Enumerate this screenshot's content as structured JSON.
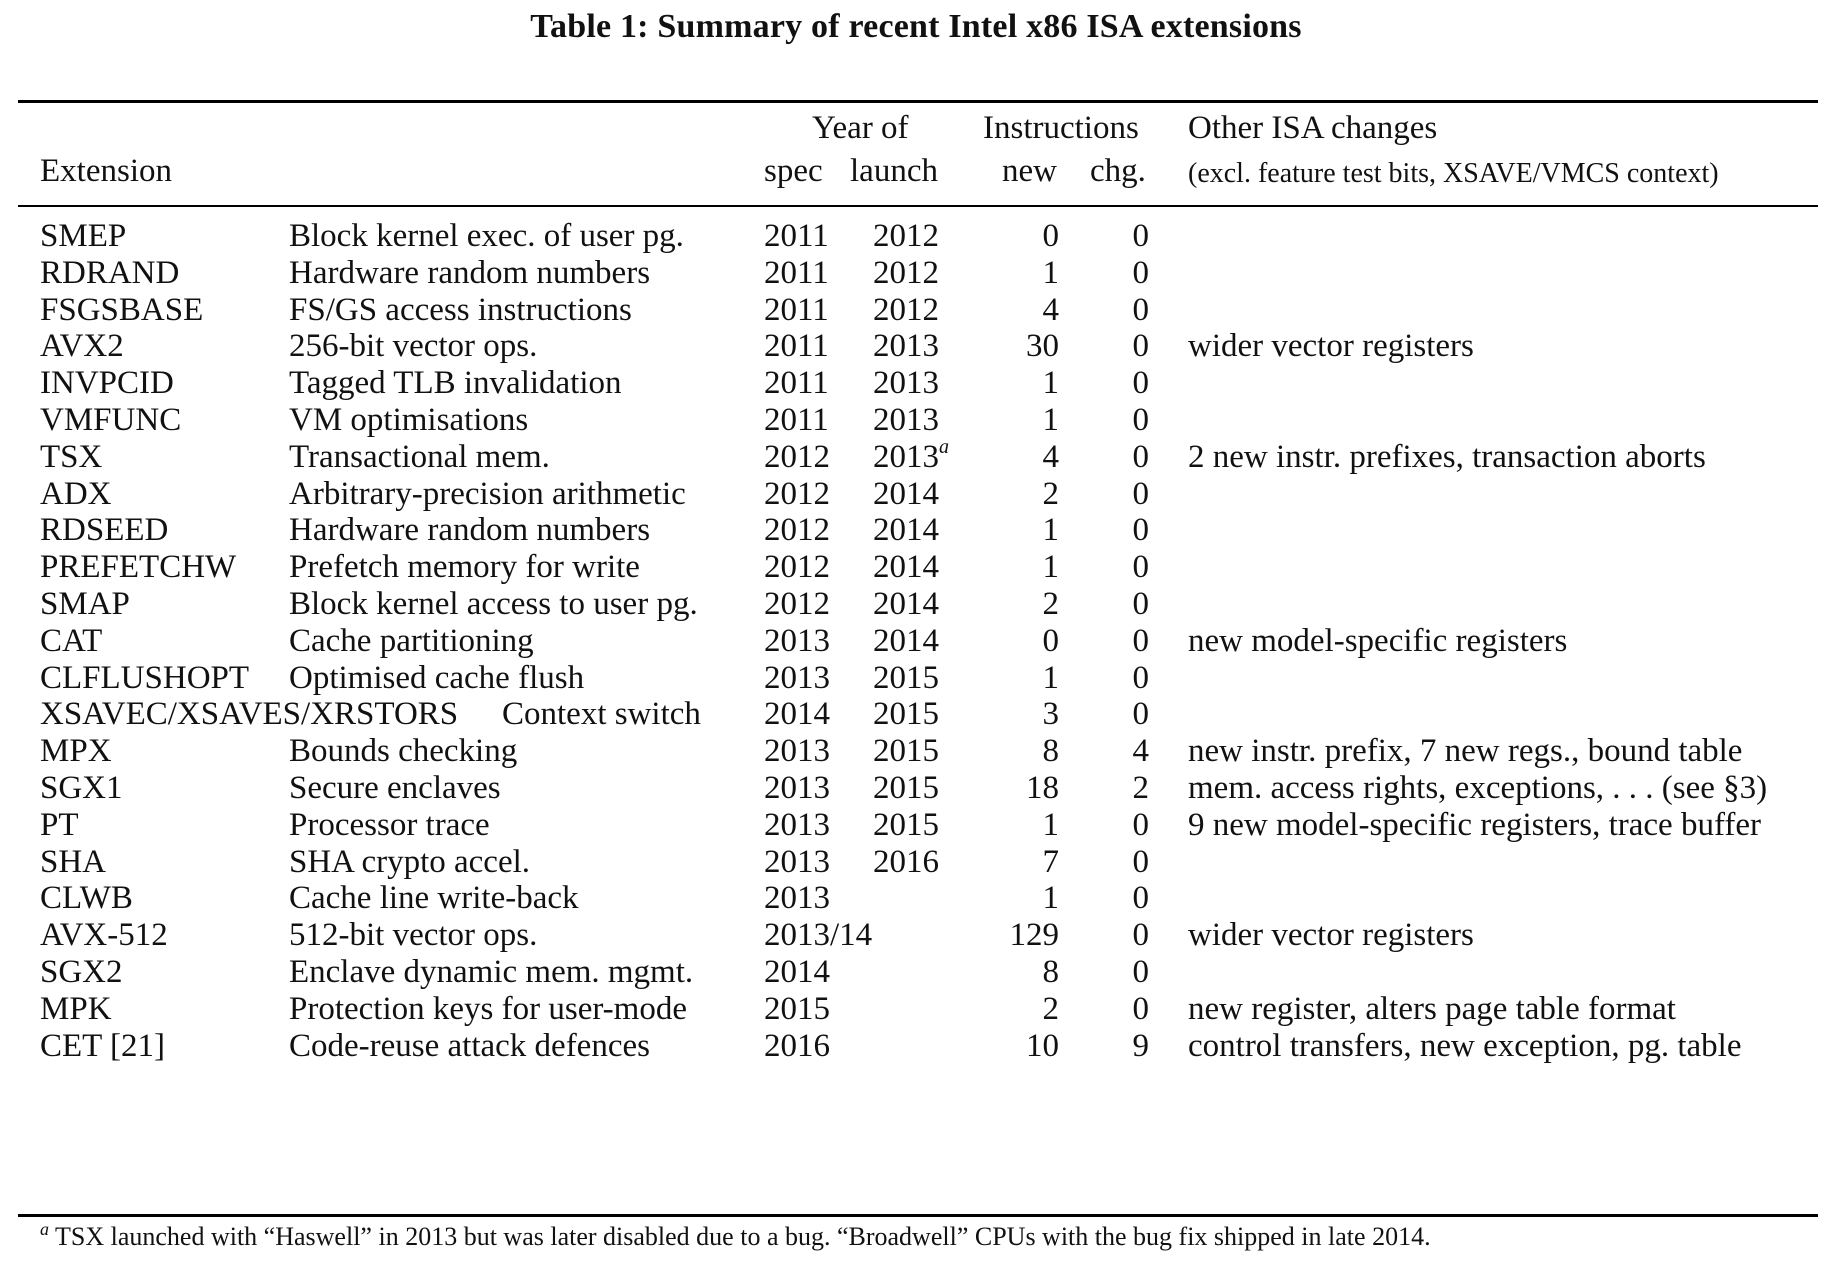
{
  "caption": "Table 1: Summary of recent Intel x86 ISA extensions",
  "headers": {
    "extension": "Extension",
    "year_of": "Year of",
    "spec": "spec",
    "launch": "launch",
    "instructions": "Instructions",
    "new": "new",
    "chg": "chg.",
    "other_isa": "Other ISA changes",
    "other_isa_note": "(excl. feature test bits, XSAVE/VMCS context)"
  },
  "rows": [
    {
      "ext": "SMEP",
      "desc": "Block kernel exec. of user pg.",
      "spec": "2011",
      "launch": "2012",
      "new": "0",
      "chg": "0",
      "other": ""
    },
    {
      "ext": "RDRAND",
      "desc": "Hardware random numbers",
      "spec": "2011",
      "launch": "2012",
      "new": "1",
      "chg": "0",
      "other": ""
    },
    {
      "ext": "FSGSBASE",
      "desc": "FS/GS access instructions",
      "spec": "2011",
      "launch": "2012",
      "new": "4",
      "chg": "0",
      "other": ""
    },
    {
      "ext": "AVX2",
      "desc": "256-bit vector ops.",
      "spec": "2011",
      "launch": "2013",
      "new": "30",
      "chg": "0",
      "other": "wider vector registers"
    },
    {
      "ext": "INVPCID",
      "desc": "Tagged TLB invalidation",
      "spec": "2011",
      "launch": "2013",
      "new": "1",
      "chg": "0",
      "other": ""
    },
    {
      "ext": "VMFUNC",
      "desc": "VM optimisations",
      "spec": "2011",
      "launch": "2013",
      "new": "1",
      "chg": "0",
      "other": ""
    },
    {
      "ext": "TSX",
      "desc": "Transactional mem.",
      "spec": "2012",
      "launch": "2013",
      "launch_note": "a",
      "new": "4",
      "chg": "0",
      "other": "2 new instr. prefixes, transaction aborts"
    },
    {
      "ext": "ADX",
      "desc": "Arbitrary-precision arithmetic",
      "spec": "2012",
      "launch": "2014",
      "new": "2",
      "chg": "0",
      "other": ""
    },
    {
      "ext": "RDSEED",
      "desc": "Hardware random numbers",
      "spec": "2012",
      "launch": "2014",
      "new": "1",
      "chg": "0",
      "other": ""
    },
    {
      "ext": "PREFETCHW",
      "desc": "Prefetch memory for write",
      "spec": "2012",
      "launch": "2014",
      "new": "1",
      "chg": "0",
      "other": ""
    },
    {
      "ext": "SMAP",
      "desc": "Block kernel access to user pg.",
      "spec": "2012",
      "launch": "2014",
      "new": "2",
      "chg": "0",
      "other": ""
    },
    {
      "ext": "CAT",
      "desc": "Cache partitioning",
      "spec": "2013",
      "launch": "2014",
      "new": "0",
      "chg": "0",
      "other": "new model-specific registers"
    },
    {
      "ext": "CLFLUSHOPT",
      "desc": "Optimised cache flush",
      "spec": "2013",
      "launch": "2015",
      "new": "1",
      "chg": "0",
      "other": ""
    },
    {
      "ext": "XSAVEC/XSAVES/XRSTORS",
      "desc": "Context switch",
      "spec": "2014",
      "launch": "2015",
      "new": "3",
      "chg": "0",
      "other": "",
      "wide": true
    },
    {
      "ext": "MPX",
      "desc": "Bounds checking",
      "spec": "2013",
      "launch": "2015",
      "new": "8",
      "chg": "4",
      "other": "new instr. prefix, 7 new regs., bound table"
    },
    {
      "ext": "SGX1",
      "desc": "Secure enclaves",
      "spec": "2013",
      "launch": "2015",
      "new": "18",
      "chg": "2",
      "other": "mem. access rights, exceptions, . . . (see §3)"
    },
    {
      "ext": "PT",
      "desc": "Processor trace",
      "spec": "2013",
      "launch": "2015",
      "new": "1",
      "chg": "0",
      "other": "9 new model-specific registers, trace buffer"
    },
    {
      "ext": "SHA",
      "desc": "SHA crypto accel.",
      "spec": "2013",
      "launch": "2016",
      "new": "7",
      "chg": "0",
      "other": ""
    },
    {
      "ext": "CLWB",
      "desc": "Cache line write-back",
      "spec": "2013",
      "launch": "",
      "new": "1",
      "chg": "0",
      "other": ""
    },
    {
      "ext": "AVX-512",
      "desc": "512-bit vector ops.",
      "spec": "2013/14",
      "launch": "",
      "new": "129",
      "chg": "0",
      "other": "wider vector registers"
    },
    {
      "ext": "SGX2",
      "desc": "Enclave dynamic mem. mgmt.",
      "spec": "2014",
      "launch": "",
      "new": "8",
      "chg": "0",
      "other": ""
    },
    {
      "ext": "MPK",
      "desc": "Protection keys for user-mode",
      "spec": "2015",
      "launch": "",
      "new": "2",
      "chg": "0",
      "other": "new register, alters page table format"
    },
    {
      "ext": "CET [21]",
      "desc": "Code-reuse attack defences",
      "spec": "2016",
      "launch": "",
      "new": "10",
      "chg": "9",
      "other": "control transfers, new exception, pg. table"
    }
  ],
  "footnote": {
    "mark": "a",
    "text": "TSX launched with “Haswell” in 2013 but was later disabled due to a bug. “Broadwell” CPUs with the bug fix shipped in late 2014."
  }
}
